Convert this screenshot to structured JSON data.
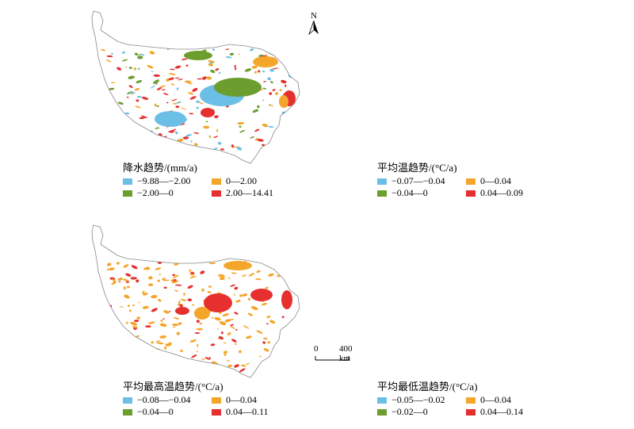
{
  "north_label": "N",
  "scale": {
    "zero": "0",
    "dist": "400 km"
  },
  "colors": {
    "blue": "#6bbfe6",
    "green": "#6b9e2e",
    "orange": "#f4a62a",
    "red": "#e63030"
  },
  "panels": [
    {
      "title": "降水趋势/(mm/a)",
      "legend": [
        {
          "label": "−9.88—−2.00",
          "color": "#6bbfe6"
        },
        {
          "label": "0—2.00",
          "color": "#f4a62a"
        },
        {
          "label": "−2.00—0",
          "color": "#6b9e2e"
        },
        {
          "label": "2.00—14.41",
          "color": "#e63030"
        }
      ]
    },
    {
      "title": "平均温趋势/(°C/a)",
      "legend": [
        {
          "label": "−0.07—−0.04",
          "color": "#6bbfe6"
        },
        {
          "label": "0—0.04",
          "color": "#f4a62a"
        },
        {
          "label": "−0.04—0",
          "color": "#6b9e2e"
        },
        {
          "label": "0.04—0.09",
          "color": "#e63030"
        }
      ]
    },
    {
      "title": "平均最高温趋势/(°C/a)",
      "legend": [
        {
          "label": "−0.08—−0.04",
          "color": "#6bbfe6"
        },
        {
          "label": "0—0.04",
          "color": "#f4a62a"
        },
        {
          "label": "−0.04—0",
          "color": "#6b9e2e"
        },
        {
          "label": "0.04—0.11",
          "color": "#e63030"
        }
      ]
    },
    {
      "title": "平均最低温趋势/(°C/a)",
      "legend": [
        {
          "label": "−0.05—−0.02",
          "color": "#6bbfe6"
        },
        {
          "label": "0—0.04",
          "color": "#f4a62a"
        },
        {
          "label": "−0.02—0",
          "color": "#6b9e2e"
        },
        {
          "label": "0.04—0.14",
          "color": "#e63030"
        }
      ]
    }
  ]
}
